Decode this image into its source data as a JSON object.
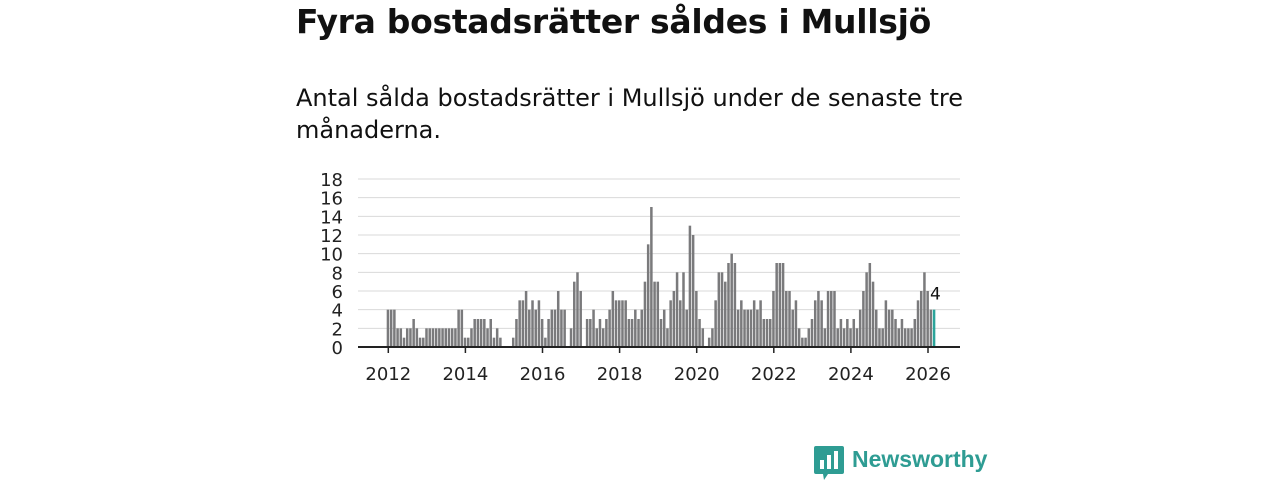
{
  "title": "Fyra bostadsrätter såldes i Mullsjö",
  "subtitle": "Antal sålda bostadsrätter i Mullsjö under de senaste tre månaderna.",
  "brand": {
    "name": "Newsworthy",
    "color": "#2e9c93",
    "icon": "newsworthy-logo-icon"
  },
  "colors": {
    "bar": "#7a7a7c",
    "highlight": "#2ba49a",
    "grid": "#d9d9d9",
    "axis": "#222222"
  },
  "chart_data": {
    "type": "bar",
    "title": "Fyra bostadsrätter såldes i Mullsjö",
    "xlabel": "",
    "ylabel": "",
    "ylim": [
      0,
      18
    ],
    "yticks": [
      0,
      2,
      4,
      6,
      8,
      10,
      12,
      14,
      16,
      18
    ],
    "xticks": [
      2012,
      2014,
      2016,
      2018,
      2020,
      2022,
      2024,
      2026
    ],
    "grid": true,
    "start": {
      "year": 2012,
      "month": 1
    },
    "frequency": "monthly",
    "highlight_label": "4",
    "values": [
      4,
      4,
      4,
      2,
      2,
      1,
      2,
      2,
      3,
      2,
      1,
      1,
      2,
      2,
      2,
      2,
      2,
      2,
      2,
      2,
      2,
      2,
      4,
      4,
      1,
      1,
      2,
      3,
      3,
      3,
      3,
      2,
      3,
      1,
      2,
      1,
      0,
      0,
      0,
      1,
      3,
      5,
      5,
      6,
      4,
      5,
      4,
      5,
      3,
      1,
      3,
      4,
      4,
      6,
      4,
      4,
      0,
      2,
      7,
      8,
      6,
      0,
      3,
      3,
      4,
      2,
      3,
      2,
      3,
      4,
      6,
      5,
      5,
      5,
      5,
      3,
      3,
      4,
      3,
      4,
      7,
      11,
      15,
      7,
      7,
      3,
      4,
      2,
      5,
      6,
      8,
      5,
      8,
      4,
      13,
      12,
      6,
      3,
      2,
      0,
      1,
      2,
      5,
      8,
      8,
      7,
      9,
      10,
      9,
      4,
      5,
      4,
      4,
      4,
      5,
      4,
      5,
      3,
      3,
      3,
      6,
      9,
      9,
      9,
      6,
      6,
      4,
      5,
      2,
      1,
      1,
      2,
      3,
      5,
      6,
      5,
      2,
      6,
      6,
      6,
      2,
      3,
      2,
      3,
      2,
      3,
      2,
      4,
      6,
      8,
      9,
      7,
      4,
      2,
      2,
      5,
      4,
      4,
      3,
      2,
      3,
      2,
      2,
      2,
      3,
      5,
      6,
      8,
      6,
      4,
      4
    ]
  }
}
